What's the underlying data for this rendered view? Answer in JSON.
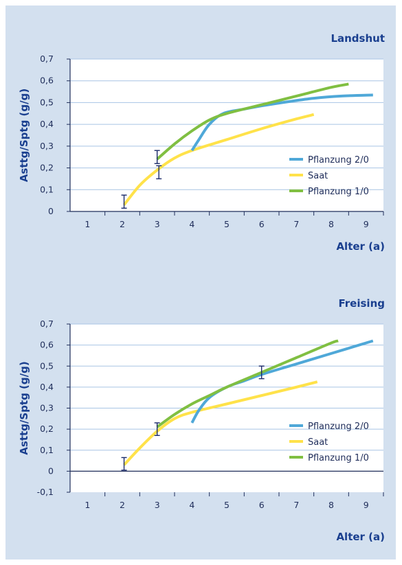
{
  "chart_data": [
    {
      "type": "line",
      "title": "Landshut",
      "xlabel": "Alter (a)",
      "ylabel": "Asttg/Sptg (g/g)",
      "ylim": [
        0,
        0.7
      ],
      "xlim": [
        0.5,
        9.5
      ],
      "xticks": [
        "1",
        "2",
        "3",
        "4",
        "5",
        "6",
        "7",
        "8",
        "9"
      ],
      "yticks": [
        "0",
        "0,1",
        "0,2",
        "0,3",
        "0,4",
        "0,5",
        "0,6",
        "0,7"
      ],
      "legend_position": "right",
      "series": [
        {
          "name": "Pflanzung 2/0",
          "color": "#4fa8d8",
          "points": [
            [
              4.0,
              0.28
            ],
            [
              4.2,
              0.33
            ],
            [
              4.5,
              0.4
            ],
            [
              4.9,
              0.45
            ],
            [
              5.5,
              0.47
            ],
            [
              6.0,
              0.485
            ],
            [
              6.8,
              0.505
            ],
            [
              7.5,
              0.52
            ],
            [
              8.3,
              0.53
            ],
            [
              9.2,
              0.535
            ]
          ]
        },
        {
          "name": "Saat",
          "color": "#ffe24a",
          "points": [
            [
              2.05,
              0.03
            ],
            [
              2.5,
              0.12
            ],
            [
              3.0,
              0.19
            ],
            [
              3.5,
              0.245
            ],
            [
              4.0,
              0.28
            ],
            [
              5.0,
              0.33
            ],
            [
              6.0,
              0.38
            ],
            [
              7.0,
              0.425
            ],
            [
              7.5,
              0.445
            ]
          ]
        },
        {
          "name": "Pflanzung 1/0",
          "color": "#80bf42",
          "points": [
            [
              3.0,
              0.24
            ],
            [
              3.5,
              0.31
            ],
            [
              4.0,
              0.37
            ],
            [
              4.5,
              0.42
            ],
            [
              5.0,
              0.45
            ],
            [
              6.0,
              0.49
            ],
            [
              7.0,
              0.53
            ],
            [
              8.0,
              0.57
            ],
            [
              8.5,
              0.585
            ]
          ]
        }
      ],
      "error_bars": [
        {
          "x": 2.05,
          "low": 0.015,
          "high": 0.075
        },
        {
          "x": 3.0,
          "low": 0.22,
          "high": 0.28
        },
        {
          "x": 3.05,
          "low": 0.15,
          "high": 0.21
        }
      ]
    },
    {
      "type": "line",
      "title": "Freising",
      "xlabel": "Alter (a)",
      "ylabel": "Asttg/Sptg (g/g)",
      "ylim": [
        -0.1,
        0.7
      ],
      "xlim": [
        0.5,
        9.5
      ],
      "xticks": [
        "1",
        "2",
        "3",
        "4",
        "5",
        "6",
        "7",
        "8",
        "9"
      ],
      "yticks": [
        "-0,1",
        "0",
        "0,1",
        "0,2",
        "0,3",
        "0,4",
        "0,5",
        "0,6",
        "0,7"
      ],
      "legend_position": "right",
      "series": [
        {
          "name": "Pflanzung 2/0",
          "color": "#4fa8d8",
          "points": [
            [
              4.0,
              0.23
            ],
            [
              4.2,
              0.29
            ],
            [
              4.5,
              0.35
            ],
            [
              5.0,
              0.4
            ],
            [
              5.5,
              0.43
            ],
            [
              6.0,
              0.46
            ],
            [
              7.0,
              0.51
            ],
            [
              8.0,
              0.56
            ],
            [
              9.2,
              0.62
            ]
          ]
        },
        {
          "name": "Saat",
          "color": "#ffe24a",
          "points": [
            [
              2.05,
              0.03
            ],
            [
              2.5,
              0.11
            ],
            [
              3.0,
              0.19
            ],
            [
              3.5,
              0.25
            ],
            [
              4.0,
              0.28
            ],
            [
              5.0,
              0.32
            ],
            [
              6.0,
              0.36
            ],
            [
              7.0,
              0.4
            ],
            [
              7.6,
              0.425
            ]
          ]
        },
        {
          "name": "Pflanzung 1/0",
          "color": "#80bf42",
          "points": [
            [
              3.0,
              0.21
            ],
            [
              3.5,
              0.27
            ],
            [
              4.0,
              0.32
            ],
            [
              4.5,
              0.36
            ],
            [
              5.0,
              0.4
            ],
            [
              6.0,
              0.47
            ],
            [
              7.0,
              0.54
            ],
            [
              8.0,
              0.61
            ],
            [
              8.2,
              0.62
            ]
          ]
        }
      ],
      "error_bars": [
        {
          "x": 2.05,
          "low": 0.005,
          "high": 0.065
        },
        {
          "x": 3.0,
          "low": 0.17,
          "high": 0.23
        },
        {
          "x": 6.0,
          "low": 0.44,
          "high": 0.5
        }
      ]
    }
  ]
}
